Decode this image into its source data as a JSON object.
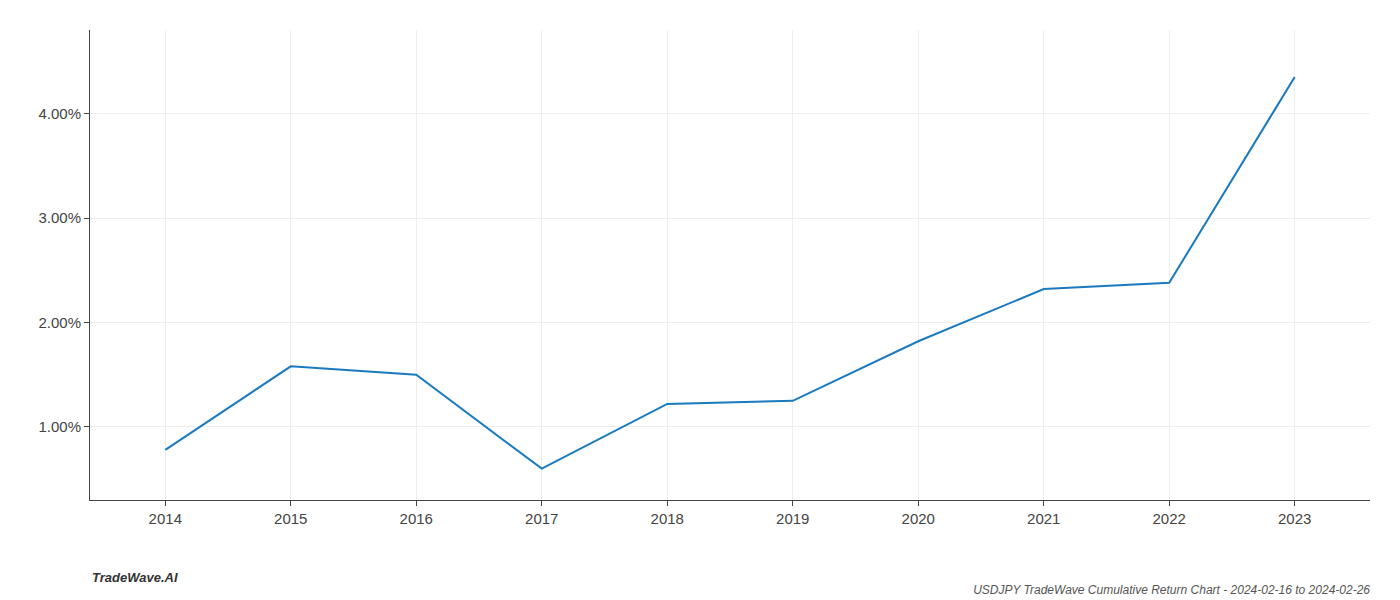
{
  "chart_data": {
    "type": "line",
    "title": "USDJPY TradeWave Cumulative Return Chart - 2024-02-16 to 2024-02-26",
    "annotations": [
      "TradeWave.AI"
    ],
    "x": [
      2014,
      2015,
      2016,
      2017,
      2018,
      2019,
      2020,
      2021,
      2022,
      2023
    ],
    "values": [
      0.0078,
      0.0158,
      0.015,
      0.006,
      0.0122,
      0.0125,
      0.0182,
      0.0232,
      0.0238,
      0.0435
    ],
    "color": "#1a7abf",
    "xlim": [
      2013.4,
      2023.6
    ],
    "xticks": [
      2014,
      2015,
      2016,
      2017,
      2018,
      2019,
      2020,
      2021,
      2022,
      2023
    ],
    "ylim": [
      0.003,
      0.048
    ],
    "yticks": [
      {
        "value": 0.01,
        "label": "1.00%"
      },
      {
        "value": 0.02,
        "label": "2.00%"
      },
      {
        "value": 0.03,
        "label": "3.00%"
      },
      {
        "value": 0.04,
        "label": "4.00%"
      }
    ],
    "grid": true
  }
}
